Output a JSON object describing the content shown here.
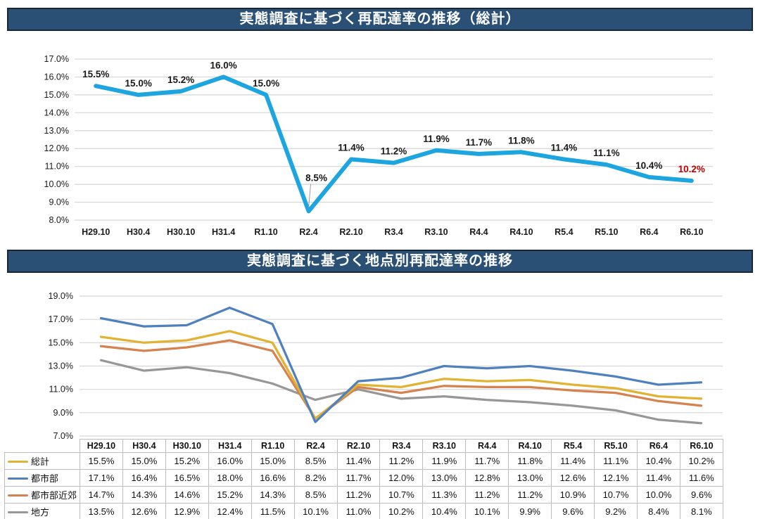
{
  "chart_data": [
    {
      "type": "line",
      "title": "実態調査に基づく再配達率の推移（総計）",
      "categories": [
        "H29.10",
        "H30.4",
        "H30.10",
        "H31.4",
        "R1.10",
        "R2.4",
        "R2.10",
        "R3.4",
        "R3.10",
        "R4.4",
        "R4.10",
        "R5.4",
        "R5.10",
        "R6.4",
        "R6.10"
      ],
      "series": [
        {
          "name": "総計",
          "color": "#1CA5DF",
          "values": [
            15.5,
            15.0,
            15.2,
            16.0,
            15.0,
            8.5,
            11.4,
            11.2,
            11.9,
            11.7,
            11.8,
            11.4,
            11.1,
            10.4,
            10.2
          ]
        }
      ],
      "data_labels": [
        "15.5%",
        "15.0%",
        "15.2%",
        "16.0%",
        "15.0%",
        "8.5%",
        "11.4%",
        "11.2%",
        "11.9%",
        "11.7%",
        "11.8%",
        "11.4%",
        "11.1%",
        "10.4%",
        "10.2%"
      ],
      "last_label_color": "#C00000",
      "callout_index": 5,
      "ylim": [
        8,
        17
      ],
      "ytick_step": 1,
      "ytick_labels": [
        "17.0%",
        "16.0%",
        "15.0%",
        "14.0%",
        "13.0%",
        "12.0%",
        "11.0%",
        "10.0%",
        "9.0%",
        "8.0%"
      ],
      "grid": true,
      "legend": "none"
    },
    {
      "type": "line",
      "title": "実態調査に基づく地点別再配達率の推移",
      "categories": [
        "H29.10",
        "H30.4",
        "H30.10",
        "H31.4",
        "R1.10",
        "R2.4",
        "R2.10",
        "R3.4",
        "R3.10",
        "R4.4",
        "R4.10",
        "R5.4",
        "R5.10",
        "R6.4",
        "R6.10"
      ],
      "series": [
        {
          "name": "総計",
          "color": "#E2B232",
          "values": [
            15.5,
            15.0,
            15.2,
            16.0,
            15.0,
            8.5,
            11.4,
            11.2,
            11.9,
            11.7,
            11.8,
            11.4,
            11.1,
            10.4,
            10.2
          ]
        },
        {
          "name": "都市部",
          "color": "#4E81BD",
          "values": [
            17.1,
            16.4,
            16.5,
            18.0,
            16.6,
            8.2,
            11.7,
            12.0,
            13.0,
            12.8,
            13.0,
            12.6,
            12.1,
            11.4,
            11.6
          ]
        },
        {
          "name": "都市部近郊",
          "color": "#D5824F",
          "values": [
            14.7,
            14.3,
            14.6,
            15.2,
            14.3,
            8.5,
            11.2,
            10.7,
            11.3,
            11.2,
            11.2,
            10.9,
            10.7,
            10.0,
            9.6
          ]
        },
        {
          "name": "地方",
          "color": "#979797",
          "values": [
            13.5,
            12.6,
            12.9,
            12.4,
            11.5,
            10.1,
            11.0,
            10.2,
            10.4,
            10.1,
            9.9,
            9.6,
            9.2,
            8.4,
            8.1
          ]
        }
      ],
      "ylim": [
        7,
        19
      ],
      "ytick_step": 2,
      "ytick_labels": [
        "19.0%",
        "17.0%",
        "15.0%",
        "13.0%",
        "11.0%",
        "9.0%",
        "7.0%"
      ],
      "grid": true,
      "legend": "table-rows"
    }
  ],
  "colors": {
    "banner_bg": "#2B5076",
    "grid": "#D6D6D6",
    "highlight_red": "#C00000"
  }
}
